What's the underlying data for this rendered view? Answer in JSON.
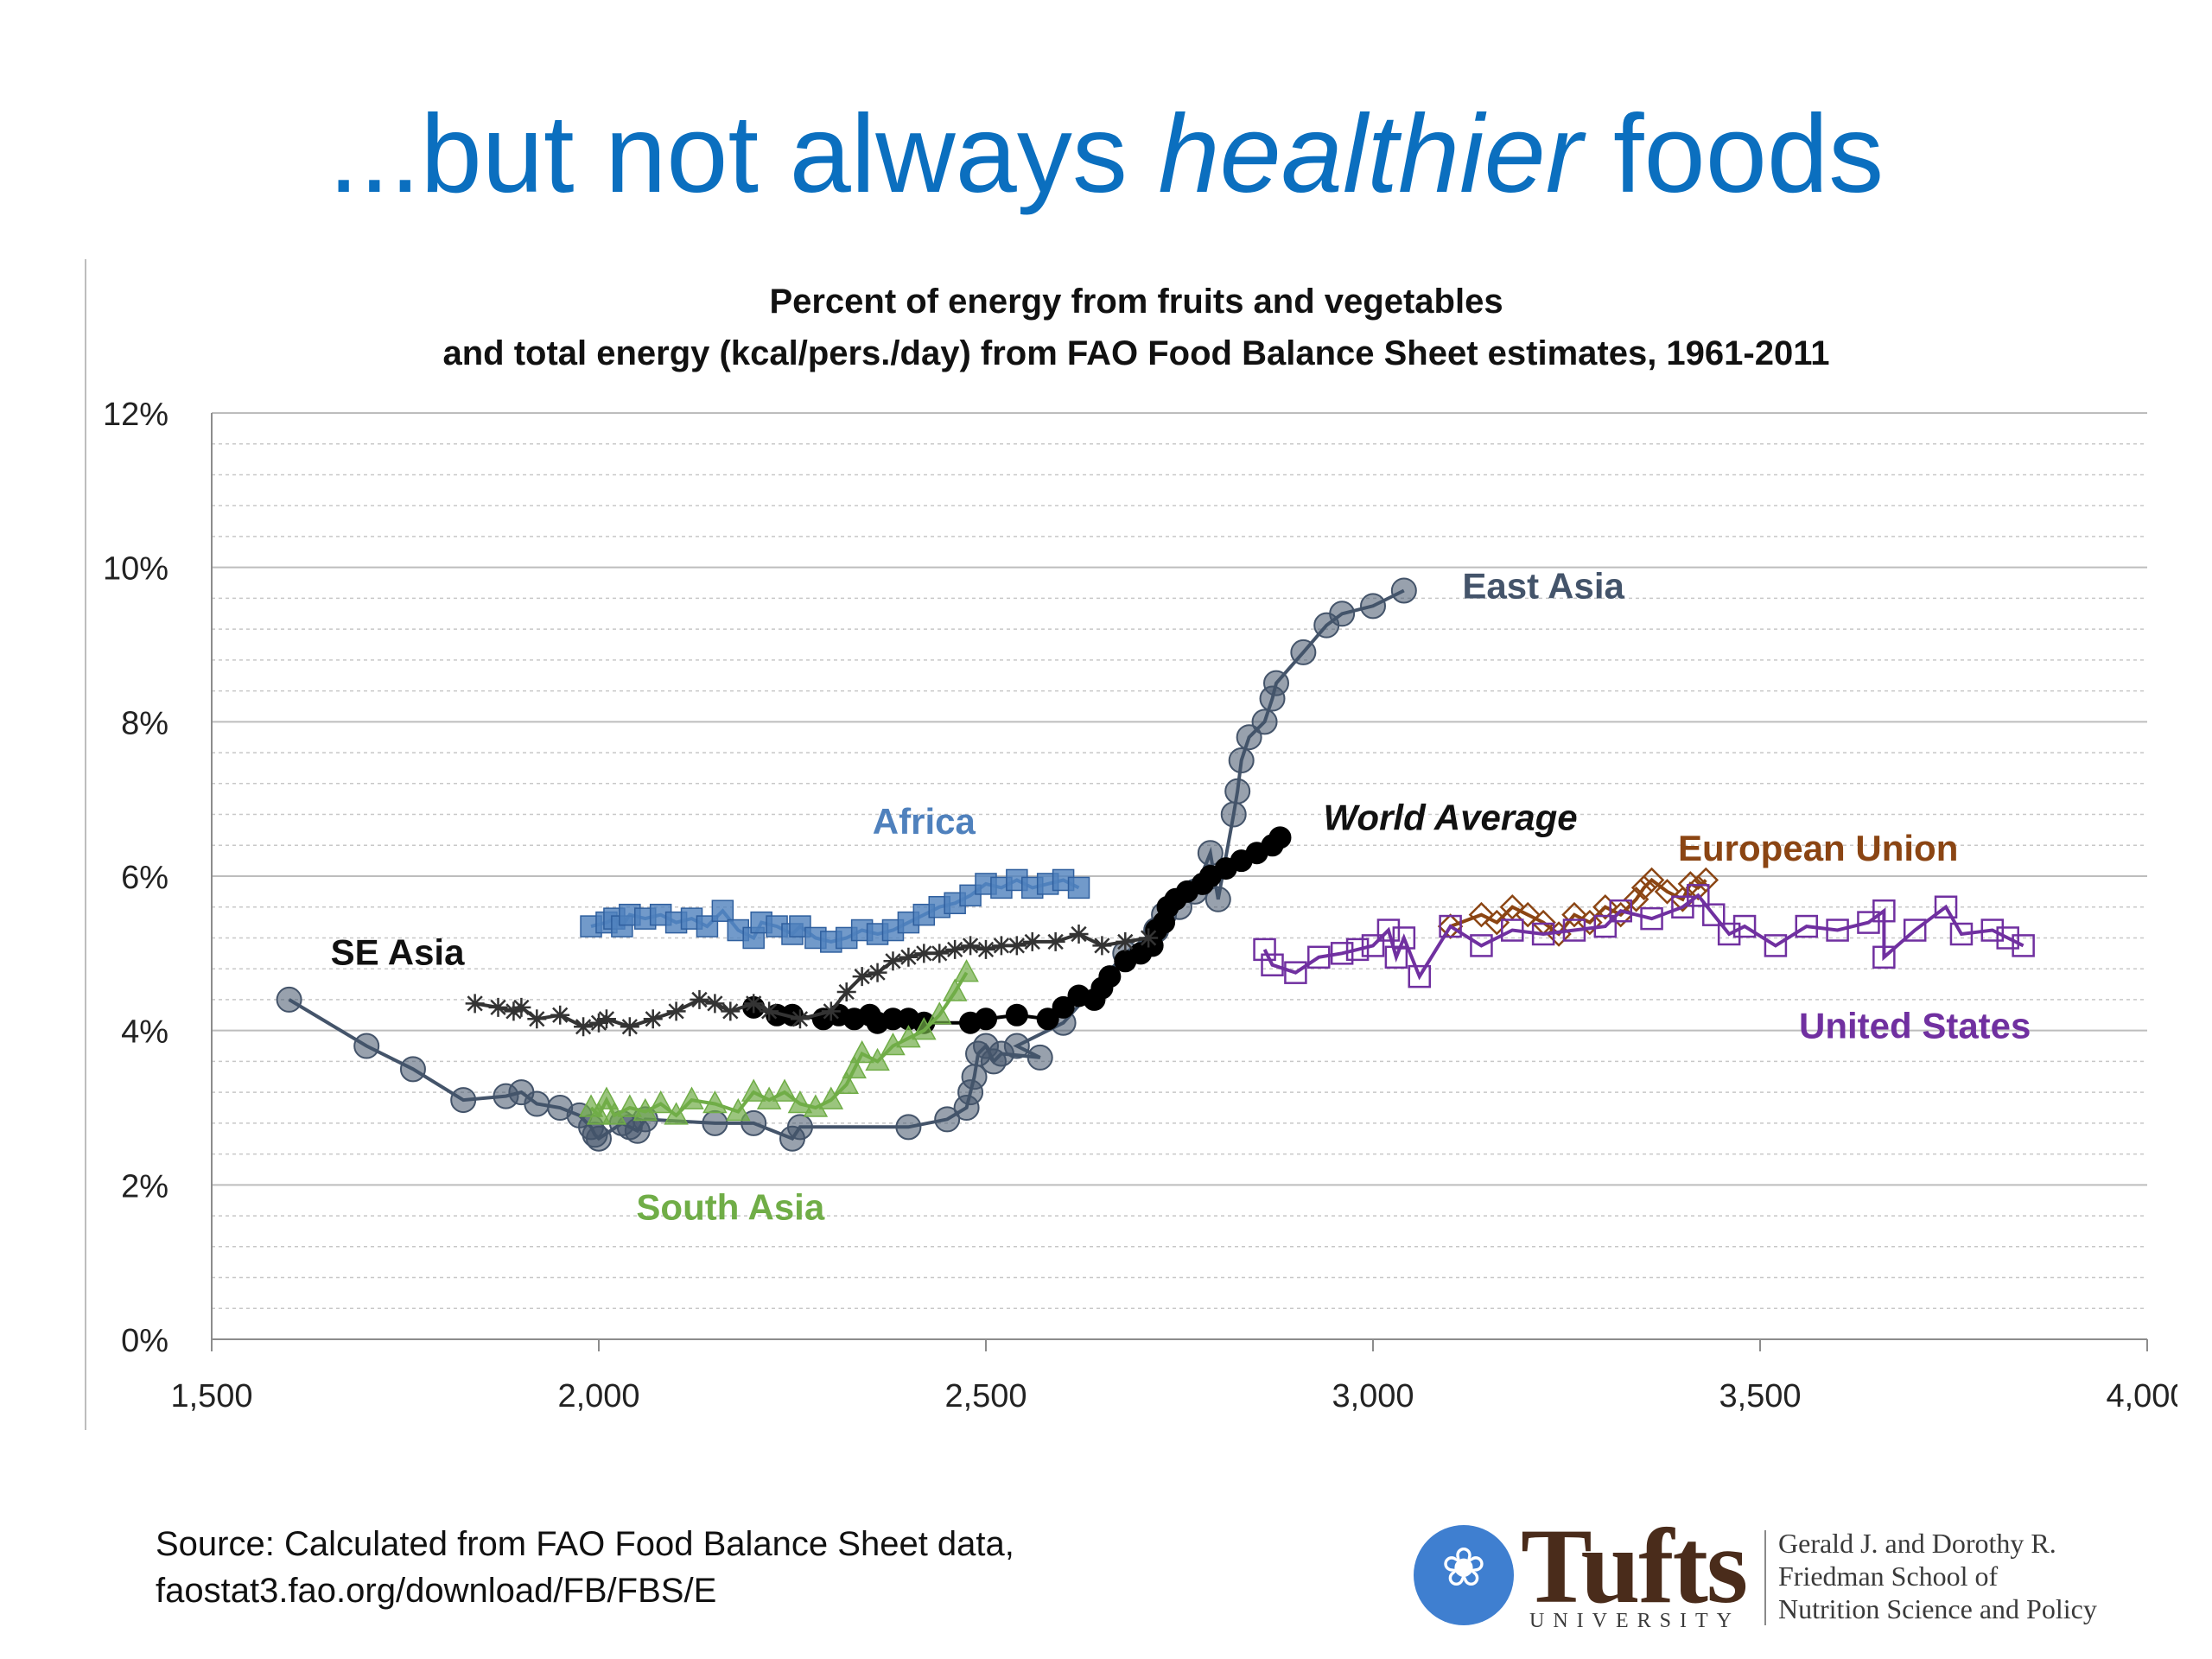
{
  "slide": {
    "title_pre": "...but not always ",
    "title_em": "healthier",
    "title_post": " foods",
    "source_line1": "Source: Calculated from FAO Food Balance Sheet data,",
    "source_line2": "faostat3.fao.org/download/FB/FBS/E",
    "logo": {
      "wordmark": "Tufts",
      "university": "UNIVERSITY",
      "school_line1": "Gerald J. and Dorothy R.",
      "school_line2": "Friedman School of",
      "school_line3": "Nutrition Science and Policy",
      "seal_icon": "tufts-seal-icon"
    }
  },
  "chart_data": {
    "type": "scatter",
    "title_line1": "Percent of energy from fruits and vegetables",
    "title_line2": "and total energy (kcal/pers./day) from FAO Food Balance Sheet estimates, 1961-2011",
    "xlabel": "",
    "ylabel": "",
    "xlim": [
      1500,
      4000
    ],
    "ylim": [
      0,
      12
    ],
    "xticks": [
      1500,
      2000,
      2500,
      3000,
      3500,
      4000
    ],
    "xtick_labels": [
      "1,500",
      "2,000",
      "2,500",
      "3,000",
      "3,500",
      "4,000"
    ],
    "yticks": [
      0,
      2,
      4,
      6,
      8,
      10,
      12
    ],
    "ytick_labels": [
      "0%",
      "2%",
      "4%",
      "6%",
      "8%",
      "10%",
      "12%"
    ],
    "minor_grid_step": 0.4,
    "grid": true,
    "legend": "inline labels",
    "series": [
      {
        "name": "East Asia",
        "color": "#44546a",
        "marker": "circle",
        "label_at": [
          3220,
          9.6
        ],
        "points": [
          [
            1600,
            4.4
          ],
          [
            1700,
            3.8
          ],
          [
            1760,
            3.5
          ],
          [
            1825,
            3.1
          ],
          [
            1880,
            3.15
          ],
          [
            1900,
            3.2
          ],
          [
            1920,
            3.05
          ],
          [
            1950,
            3.0
          ],
          [
            1975,
            2.9
          ],
          [
            1990,
            2.75
          ],
          [
            1995,
            2.65
          ],
          [
            2000,
            2.6
          ],
          [
            2030,
            2.8
          ],
          [
            2040,
            2.75
          ],
          [
            2050,
            2.7
          ],
          [
            2060,
            2.85
          ],
          [
            2150,
            2.8
          ],
          [
            2200,
            2.8
          ],
          [
            2250,
            2.6
          ],
          [
            2260,
            2.75
          ],
          [
            2400,
            2.75
          ],
          [
            2450,
            2.85
          ],
          [
            2475,
            3.0
          ],
          [
            2480,
            3.2
          ],
          [
            2485,
            3.4
          ],
          [
            2490,
            3.7
          ],
          [
            2500,
            3.8
          ],
          [
            2510,
            3.6
          ],
          [
            2520,
            3.7
          ],
          [
            2570,
            3.65
          ],
          [
            2540,
            3.8
          ],
          [
            2600,
            4.1
          ],
          [
            2680,
            5.0
          ],
          [
            2720,
            5.3
          ],
          [
            2730,
            5.5
          ],
          [
            2750,
            5.6
          ],
          [
            2770,
            5.8
          ],
          [
            2790,
            6.3
          ],
          [
            2800,
            5.7
          ],
          [
            2820,
            6.8
          ],
          [
            2825,
            7.1
          ],
          [
            2830,
            7.5
          ],
          [
            2840,
            7.8
          ],
          [
            2860,
            8.0
          ],
          [
            2870,
            8.3
          ],
          [
            2875,
            8.5
          ],
          [
            2910,
            8.9
          ],
          [
            2940,
            9.25
          ],
          [
            2960,
            9.4
          ],
          [
            3000,
            9.5
          ],
          [
            3040,
            9.7
          ]
        ]
      },
      {
        "name": "World Average",
        "color": "#000000",
        "marker": "circle",
        "label_at": [
          3100,
          6.6
        ],
        "points": [
          [
            2200,
            4.3
          ],
          [
            2230,
            4.2
          ],
          [
            2250,
            4.2
          ],
          [
            2290,
            4.15
          ],
          [
            2310,
            4.2
          ],
          [
            2330,
            4.15
          ],
          [
            2350,
            4.2
          ],
          [
            2360,
            4.1
          ],
          [
            2380,
            4.15
          ],
          [
            2400,
            4.15
          ],
          [
            2420,
            4.1
          ],
          [
            2480,
            4.1
          ],
          [
            2500,
            4.15
          ],
          [
            2540,
            4.2
          ],
          [
            2580,
            4.15
          ],
          [
            2600,
            4.3
          ],
          [
            2620,
            4.45
          ],
          [
            2640,
            4.4
          ],
          [
            2650,
            4.55
          ],
          [
            2660,
            4.7
          ],
          [
            2680,
            4.9
          ],
          [
            2700,
            5.0
          ],
          [
            2715,
            5.1
          ],
          [
            2720,
            5.3
          ],
          [
            2730,
            5.4
          ],
          [
            2735,
            5.6
          ],
          [
            2745,
            5.7
          ],
          [
            2760,
            5.8
          ],
          [
            2780,
            5.9
          ],
          [
            2790,
            6.0
          ],
          [
            2810,
            6.1
          ],
          [
            2830,
            6.2
          ],
          [
            2850,
            6.3
          ],
          [
            2870,
            6.4
          ],
          [
            2880,
            6.5
          ]
        ]
      },
      {
        "name": "Africa",
        "color": "#4f81bd",
        "marker": "square",
        "label_at": [
          2420,
          6.55
        ],
        "points": [
          [
            1990,
            5.35
          ],
          [
            2010,
            5.4
          ],
          [
            2020,
            5.45
          ],
          [
            2030,
            5.35
          ],
          [
            2040,
            5.5
          ],
          [
            2060,
            5.45
          ],
          [
            2080,
            5.5
          ],
          [
            2100,
            5.4
          ],
          [
            2120,
            5.45
          ],
          [
            2140,
            5.35
          ],
          [
            2160,
            5.55
          ],
          [
            2180,
            5.3
          ],
          [
            2200,
            5.2
          ],
          [
            2210,
            5.4
          ],
          [
            2230,
            5.35
          ],
          [
            2250,
            5.25
          ],
          [
            2260,
            5.35
          ],
          [
            2280,
            5.2
          ],
          [
            2300,
            5.15
          ],
          [
            2320,
            5.2
          ],
          [
            2340,
            5.3
          ],
          [
            2360,
            5.25
          ],
          [
            2380,
            5.3
          ],
          [
            2400,
            5.4
          ],
          [
            2420,
            5.5
          ],
          [
            2440,
            5.6
          ],
          [
            2460,
            5.65
          ],
          [
            2480,
            5.75
          ],
          [
            2500,
            5.9
          ],
          [
            2520,
            5.85
          ],
          [
            2540,
            5.95
          ],
          [
            2560,
            5.85
          ],
          [
            2580,
            5.9
          ],
          [
            2600,
            5.95
          ],
          [
            2620,
            5.85
          ]
        ]
      },
      {
        "name": "SE Asia",
        "color": "#333333",
        "marker": "star",
        "label_at": [
          1740,
          4.85
        ],
        "points": [
          [
            1840,
            4.35
          ],
          [
            1870,
            4.3
          ],
          [
            1890,
            4.25
          ],
          [
            1900,
            4.3
          ],
          [
            1920,
            4.15
          ],
          [
            1950,
            4.2
          ],
          [
            1980,
            4.05
          ],
          [
            2000,
            4.1
          ],
          [
            2010,
            4.15
          ],
          [
            2040,
            4.05
          ],
          [
            2070,
            4.15
          ],
          [
            2100,
            4.25
          ],
          [
            2130,
            4.4
          ],
          [
            2150,
            4.35
          ],
          [
            2170,
            4.25
          ],
          [
            2200,
            4.35
          ],
          [
            2220,
            4.25
          ],
          [
            2260,
            4.15
          ],
          [
            2300,
            4.25
          ],
          [
            2320,
            4.5
          ],
          [
            2340,
            4.7
          ],
          [
            2360,
            4.75
          ],
          [
            2380,
            4.9
          ],
          [
            2400,
            4.95
          ],
          [
            2420,
            5.0
          ],
          [
            2440,
            5.0
          ],
          [
            2460,
            5.05
          ],
          [
            2480,
            5.1
          ],
          [
            2500,
            5.05
          ],
          [
            2520,
            5.1
          ],
          [
            2540,
            5.1
          ],
          [
            2560,
            5.15
          ],
          [
            2590,
            5.15
          ],
          [
            2620,
            5.25
          ],
          [
            2650,
            5.1
          ],
          [
            2680,
            5.15
          ],
          [
            2710,
            5.2
          ]
        ]
      },
      {
        "name": "South Asia",
        "color": "#70ad47",
        "marker": "triangle",
        "label_at": [
          2170,
          1.55
        ],
        "points": [
          [
            1990,
            3.0
          ],
          [
            2000,
            2.9
          ],
          [
            2010,
            3.1
          ],
          [
            2020,
            2.9
          ],
          [
            2040,
            3.0
          ],
          [
            2060,
            2.95
          ],
          [
            2080,
            3.05
          ],
          [
            2100,
            2.9
          ],
          [
            2120,
            3.1
          ],
          [
            2150,
            3.05
          ],
          [
            2180,
            2.95
          ],
          [
            2200,
            3.2
          ],
          [
            2220,
            3.1
          ],
          [
            2240,
            3.2
          ],
          [
            2260,
            3.05
          ],
          [
            2280,
            3.0
          ],
          [
            2300,
            3.1
          ],
          [
            2320,
            3.3
          ],
          [
            2330,
            3.5
          ],
          [
            2340,
            3.7
          ],
          [
            2360,
            3.6
          ],
          [
            2380,
            3.8
          ],
          [
            2400,
            3.9
          ],
          [
            2420,
            4.0
          ],
          [
            2440,
            4.2
          ],
          [
            2460,
            4.5
          ],
          [
            2475,
            4.75
          ]
        ]
      },
      {
        "name": "European Union",
        "color": "#8b4513",
        "marker": "diamond",
        "label_at": [
          3575,
          6.2
        ],
        "points": [
          [
            3100,
            5.35
          ],
          [
            3140,
            5.5
          ],
          [
            3160,
            5.4
          ],
          [
            3180,
            5.6
          ],
          [
            3200,
            5.5
          ],
          [
            3220,
            5.4
          ],
          [
            3240,
            5.25
          ],
          [
            3260,
            5.5
          ],
          [
            3280,
            5.4
          ],
          [
            3300,
            5.6
          ],
          [
            3320,
            5.5
          ],
          [
            3340,
            5.7
          ],
          [
            3350,
            5.85
          ],
          [
            3360,
            5.95
          ],
          [
            3380,
            5.8
          ],
          [
            3400,
            5.7
          ],
          [
            3410,
            5.9
          ],
          [
            3420,
            5.85
          ],
          [
            3430,
            5.95
          ]
        ]
      },
      {
        "name": "United States",
        "color": "#7030a0",
        "marker": "square-open",
        "label_at": [
          3700,
          3.9
        ],
        "points": [
          [
            2860,
            5.05
          ],
          [
            2870,
            4.85
          ],
          [
            2900,
            4.75
          ],
          [
            2930,
            4.95
          ],
          [
            2960,
            5.0
          ],
          [
            2980,
            5.05
          ],
          [
            3000,
            5.1
          ],
          [
            3020,
            5.3
          ],
          [
            3030,
            4.95
          ],
          [
            3040,
            5.2
          ],
          [
            3060,
            4.7
          ],
          [
            3100,
            5.35
          ],
          [
            3140,
            5.1
          ],
          [
            3180,
            5.3
          ],
          [
            3220,
            5.25
          ],
          [
            3260,
            5.3
          ],
          [
            3300,
            5.35
          ],
          [
            3320,
            5.55
          ],
          [
            3360,
            5.45
          ],
          [
            3400,
            5.6
          ],
          [
            3420,
            5.75
          ],
          [
            3440,
            5.5
          ],
          [
            3460,
            5.25
          ],
          [
            3480,
            5.35
          ],
          [
            3520,
            5.1
          ],
          [
            3560,
            5.35
          ],
          [
            3600,
            5.3
          ],
          [
            3640,
            5.4
          ],
          [
            3660,
            5.55
          ],
          [
            3660,
            4.95
          ],
          [
            3700,
            5.3
          ],
          [
            3740,
            5.6
          ],
          [
            3760,
            5.25
          ],
          [
            3800,
            5.3
          ],
          [
            3820,
            5.2
          ],
          [
            3840,
            5.1
          ]
        ]
      }
    ]
  }
}
